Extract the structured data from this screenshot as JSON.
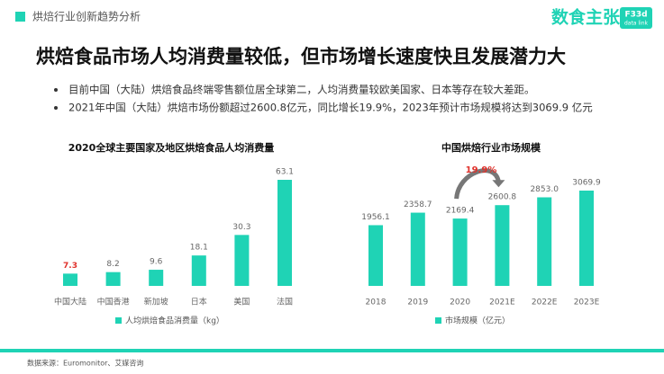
{
  "header": {
    "section": "烘焙行业创新趋势分析",
    "title": "烘焙食品市场人均消费量较低，但市场增长速度快且发展潜力大",
    "bullets": [
      "目前中国（大陆）烘焙食品终端零售额位居全球第二，人均消费量较欧美国家、日本等存在较大差距。",
      "2021年中国（大陆）烘焙市场份额超过2600.8亿元，同比增长19.9%，2023年预计市场规模将达到3069.9 亿元"
    ]
  },
  "logo": {
    "name": "数食主张",
    "badge_top": "F33d",
    "badge_bottom": "data link"
  },
  "source": "数据来源：Euromonitor、艾媒咨询",
  "chart_data": [
    {
      "type": "bar",
      "title": "2020全球主要国家及地区烘焙食品人均消费量",
      "categories": [
        "中国大陆",
        "中国香港",
        "新加坡",
        "日本",
        "美国",
        "法国"
      ],
      "series": [
        {
          "name": "人均烘焙食品消费量（kg）",
          "color": "#1fd3b5",
          "values": [
            7.3,
            8.2,
            9.6,
            18.1,
            30.3,
            63.1
          ],
          "value_label_colors": [
            "#e0312b",
            "#666666",
            "#666666",
            "#666666",
            "#666666",
            "#666666"
          ]
        }
      ]
    },
    {
      "type": "bar",
      "title": "中国烘焙行业市场规模",
      "categories": [
        "2018",
        "2019",
        "2020",
        "2021E",
        "2022E",
        "2023E"
      ],
      "series": [
        {
          "name": "市场规模（亿元）",
          "color": "#1fd3b5",
          "values": [
            1956.1,
            2358.7,
            2169.4,
            2600.8,
            2853.0,
            3069.9
          ],
          "value_labels": [
            "1956.1",
            "2358.7",
            "2169.4",
            "2600.8",
            "2853.0",
            "3069.9"
          ],
          "value_label_colors": [
            "#666666",
            "#666666",
            "#666666",
            "#666666",
            "#666666",
            "#666666"
          ]
        }
      ],
      "annotation": {
        "text": "19.9%",
        "color": "#e0312b"
      }
    }
  ]
}
